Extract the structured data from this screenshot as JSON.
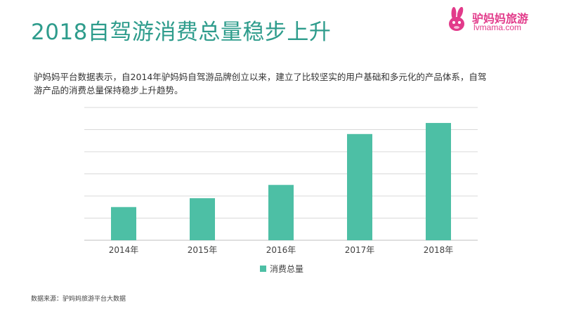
{
  "header": {
    "title": "2018自驾游消费总量稳步上升"
  },
  "logo": {
    "name": "驴妈妈旅游",
    "url": "lvmama.com",
    "icon": "rabbit-icon",
    "color": "#e23a8a"
  },
  "description": "驴妈妈平台数据表示，自2014年驴妈妈自驾游品牌创立以来，建立了比较坚实的用户基础和多元化的产品体系，自驾游产品的消费总量保持稳步上升趋势。",
  "footer": {
    "source": "数据来源：驴妈妈旅游平台大数据"
  },
  "chart_data": {
    "type": "bar",
    "categories": [
      "2014年",
      "2015年",
      "2016年",
      "2017年",
      "2018年"
    ],
    "series": [
      {
        "name": "消费总量",
        "values": [
          1.5,
          1.9,
          2.5,
          4.8,
          5.3
        ],
        "color": "#4dbfa5"
      }
    ],
    "ylim": [
      0,
      6
    ],
    "ytick_step": 1,
    "show_y_tick_labels": false,
    "grid": true,
    "legend_position": "bottom-center",
    "xlabel": "",
    "ylabel": ""
  }
}
